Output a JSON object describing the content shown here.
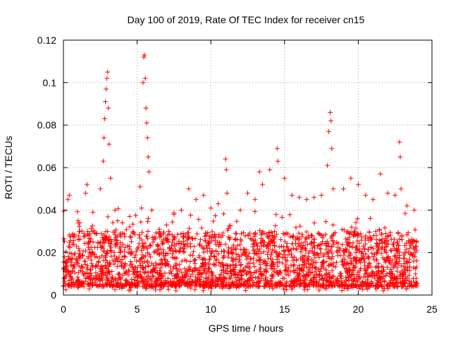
{
  "chart_data": {
    "type": "scatter",
    "title": "Day 100 of 2019, Rate Of TEC Index for receiver cn15",
    "xlabel": "GPS time / hours",
    "ylabel": "ROTI / TECUs",
    "xlim": [
      0,
      25
    ],
    "ylim": [
      0,
      0.12
    ],
    "x_ticks": [
      0,
      5,
      10,
      15,
      20,
      25
    ],
    "x_tick_labels": [
      "0",
      "5",
      "10",
      "15",
      "20",
      "25"
    ],
    "y_ticks": [
      0,
      0.02,
      0.04,
      0.06,
      0.08,
      0.1,
      0.12
    ],
    "y_tick_labels": [
      "0",
      "0.02",
      "0.04",
      "0.06",
      "0.08",
      "0.1",
      "0.12"
    ],
    "grid": true,
    "marker": "+",
    "series": [
      {
        "name": "ROTI",
        "color": "#ff0000",
        "data_range_hours": [
          0,
          24
        ],
        "typical_range": [
          0.004,
          0.03
        ],
        "points": [
          {
            "x": 0.1,
            "y": 0.012
          },
          {
            "x": 0.3,
            "y": 0.045
          },
          {
            "x": 0.4,
            "y": 0.047
          },
          {
            "x": 1.0,
            "y": 0.035
          },
          {
            "x": 1.5,
            "y": 0.048
          },
          {
            "x": 1.6,
            "y": 0.052
          },
          {
            "x": 2.0,
            "y": 0.039
          },
          {
            "x": 2.5,
            "y": 0.05
          },
          {
            "x": 2.7,
            "y": 0.063
          },
          {
            "x": 2.75,
            "y": 0.074
          },
          {
            "x": 2.8,
            "y": 0.083
          },
          {
            "x": 2.85,
            "y": 0.091
          },
          {
            "x": 2.9,
            "y": 0.097
          },
          {
            "x": 2.95,
            "y": 0.102
          },
          {
            "x": 3.0,
            "y": 0.105
          },
          {
            "x": 3.05,
            "y": 0.088
          },
          {
            "x": 3.1,
            "y": 0.071
          },
          {
            "x": 3.2,
            "y": 0.055
          },
          {
            "x": 3.5,
            "y": 0.04
          },
          {
            "x": 4.0,
            "y": 0.034
          },
          {
            "x": 4.5,
            "y": 0.037
          },
          {
            "x": 5.2,
            "y": 0.051
          },
          {
            "x": 5.3,
            "y": 0.041
          },
          {
            "x": 5.4,
            "y": 0.1
          },
          {
            "x": 5.45,
            "y": 0.112
          },
          {
            "x": 5.5,
            "y": 0.113
          },
          {
            "x": 5.55,
            "y": 0.102
          },
          {
            "x": 5.6,
            "y": 0.088
          },
          {
            "x": 5.65,
            "y": 0.081
          },
          {
            "x": 5.7,
            "y": 0.074
          },
          {
            "x": 5.75,
            "y": 0.065
          },
          {
            "x": 5.8,
            "y": 0.058
          },
          {
            "x": 6.0,
            "y": 0.04
          },
          {
            "x": 6.5,
            "y": 0.031
          },
          {
            "x": 7.0,
            "y": 0.033
          },
          {
            "x": 7.5,
            "y": 0.038
          },
          {
            "x": 8.0,
            "y": 0.04
          },
          {
            "x": 8.5,
            "y": 0.05
          },
          {
            "x": 9.0,
            "y": 0.045
          },
          {
            "x": 9.5,
            "y": 0.047
          },
          {
            "x": 10.0,
            "y": 0.041
          },
          {
            "x": 10.5,
            "y": 0.043
          },
          {
            "x": 11.0,
            "y": 0.064
          },
          {
            "x": 11.05,
            "y": 0.059
          },
          {
            "x": 11.1,
            "y": 0.048
          },
          {
            "x": 12.0,
            "y": 0.04
          },
          {
            "x": 12.5,
            "y": 0.048
          },
          {
            "x": 13.0,
            "y": 0.045
          },
          {
            "x": 13.3,
            "y": 0.058
          },
          {
            "x": 13.5,
            "y": 0.052
          },
          {
            "x": 14.0,
            "y": 0.059
          },
          {
            "x": 14.5,
            "y": 0.069
          },
          {
            "x": 14.55,
            "y": 0.063
          },
          {
            "x": 15.0,
            "y": 0.055
          },
          {
            "x": 15.5,
            "y": 0.047
          },
          {
            "x": 16.0,
            "y": 0.046
          },
          {
            "x": 16.5,
            "y": 0.045
          },
          {
            "x": 17.0,
            "y": 0.046
          },
          {
            "x": 17.5,
            "y": 0.047
          },
          {
            "x": 17.9,
            "y": 0.061
          },
          {
            "x": 18.0,
            "y": 0.077
          },
          {
            "x": 18.1,
            "y": 0.086
          },
          {
            "x": 18.15,
            "y": 0.082
          },
          {
            "x": 18.2,
            "y": 0.069
          },
          {
            "x": 18.3,
            "y": 0.05
          },
          {
            "x": 19.0,
            "y": 0.05
          },
          {
            "x": 19.5,
            "y": 0.055
          },
          {
            "x": 20.0,
            "y": 0.052
          },
          {
            "x": 20.5,
            "y": 0.047
          },
          {
            "x": 21.0,
            "y": 0.045
          },
          {
            "x": 21.5,
            "y": 0.057
          },
          {
            "x": 22.0,
            "y": 0.048
          },
          {
            "x": 22.5,
            "y": 0.047
          },
          {
            "x": 22.8,
            "y": 0.072
          },
          {
            "x": 22.85,
            "y": 0.065
          },
          {
            "x": 22.9,
            "y": 0.05
          },
          {
            "x": 23.3,
            "y": 0.042
          },
          {
            "x": 23.8,
            "y": 0.04
          }
        ]
      }
    ]
  }
}
